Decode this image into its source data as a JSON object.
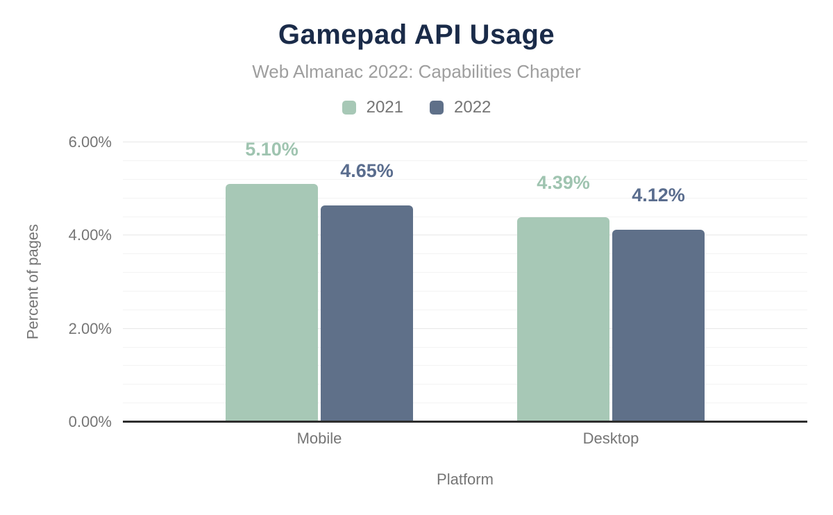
{
  "chart_data": {
    "type": "bar",
    "title": "Gamepad API Usage",
    "subtitle": "Web Almanac 2022: Capabilities Chapter",
    "categories": [
      "Mobile",
      "Desktop"
    ],
    "series": [
      {
        "name": "2021",
        "color": "#a7c8b6",
        "label_color": "#9fc4b0",
        "values": [
          5.1,
          4.39
        ],
        "data_labels": [
          "5.10%",
          "4.39%"
        ]
      },
      {
        "name": "2022",
        "color": "#5f7089",
        "label_color": "#5a6d8e",
        "values": [
          4.65,
          4.12
        ],
        "data_labels": [
          "4.65%",
          "4.12%"
        ]
      }
    ],
    "xlabel": "Platform",
    "ylabel": "Percent of pages",
    "ylim": [
      0,
      6
    ],
    "yticks": [
      {
        "value": 0,
        "label": "0.00%"
      },
      {
        "value": 2,
        "label": "2.00%"
      },
      {
        "value": 4,
        "label": "4.00%"
      },
      {
        "value": 6,
        "label": "6.00%"
      }
    ],
    "minor_gridline_step": 0.4,
    "grid": true,
    "legend_position": "top"
  },
  "colors": {
    "title": "#1a2b49",
    "subtitle": "#9e9e9e",
    "axis_text": "#757575",
    "axis_line": "#2e2e2e",
    "grid_major": "#e7e7e7",
    "grid_minor": "#f3f3f3",
    "background": "#ffffff"
  }
}
